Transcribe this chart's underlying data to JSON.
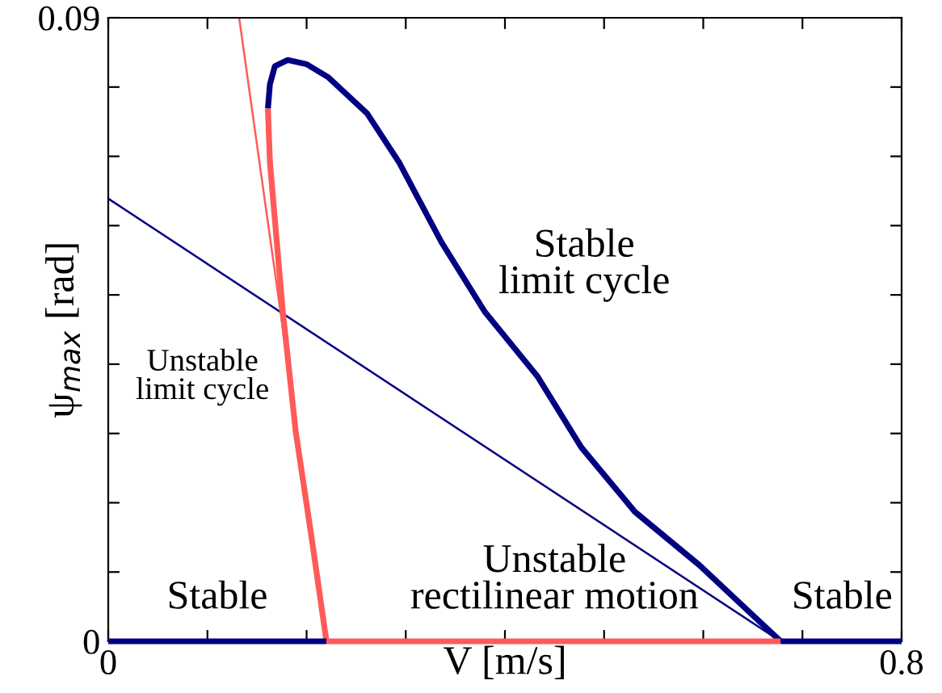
{
  "chart_data": {
    "type": "line",
    "xlabel": "V [m/s]",
    "ylabel": "ψ$_{max}$ [rad]",
    "xlim": [
      0,
      0.8
    ],
    "ylim": [
      0,
      0.09
    ],
    "xticks": [
      0,
      {
        "value": 0.1,
        "label": null
      },
      {
        "value": 0.2,
        "label": null
      },
      {
        "value": 0.3,
        "label": null
      },
      {
        "value": 0.4,
        "label": null
      },
      {
        "value": 0.5,
        "label": null
      },
      {
        "value": 0.6,
        "label": null
      },
      {
        "value": 0.7,
        "label": null
      },
      0.8
    ],
    "yticks": [
      0,
      {
        "value": 0.01,
        "label": null
      },
      {
        "value": 0.02,
        "label": null
      },
      {
        "value": 0.03,
        "label": null
      },
      {
        "value": 0.04,
        "label": null
      },
      {
        "value": 0.05,
        "label": null
      },
      {
        "value": 0.06,
        "label": null
      },
      {
        "value": 0.07,
        "label": null
      },
      {
        "value": 0.08,
        "label": null
      },
      0.09
    ],
    "grid": false,
    "legend": false,
    "marker": "none",
    "line_style": "solid",
    "series": [
      {
        "color": "#000080",
        "x": [
          0.161,
          0.163,
          0.168,
          0.181,
          0.2,
          0.222,
          0.261,
          0.293,
          0.336,
          0.38,
          0.433,
          0.477,
          0.531,
          0.596,
          0.678
        ],
        "values": [
          0.0769,
          0.0804,
          0.083,
          0.0839,
          0.0833,
          0.0814,
          0.0762,
          0.0692,
          0.0576,
          0.0475,
          0.0382,
          0.028,
          0.0187,
          0.011,
          0
        ]
      },
      {
        "color": "#ff5a5a",
        "x": [
          0.161,
          0.163,
          0.176,
          0.189,
          0.205,
          0.22
        ],
        "values": [
          0.0769,
          0.0692,
          0.0476,
          0.0303,
          0.015,
          0
        ]
      },
      {
        "color": "#000080",
        "x": [
          0,
          0.22
        ],
        "values": [
          0,
          0
        ]
      },
      {
        "color": "#ff5a5a",
        "x": [
          0.22,
          0.678
        ],
        "values": [
          0,
          0
        ]
      },
      {
        "color": "#000080",
        "x": [
          0.678,
          0.8
        ],
        "values": [
          0,
          0
        ]
      },
      {
        "color": "#000080",
        "x": [
          0,
          0.678
        ],
        "values": [
          0.0639,
          0
        ]
      },
      {
        "color": "#ff5a5a",
        "x": [
          0.132,
          0.185
        ],
        "values": [
          0.09,
          0.036
        ]
      }
    ],
    "annotations": [
      "Unstable\nlimit cycle",
      "Stable\nlimit cycle",
      "Stable",
      "Unstable\nrectilinear motion",
      "Stable"
    ]
  }
}
